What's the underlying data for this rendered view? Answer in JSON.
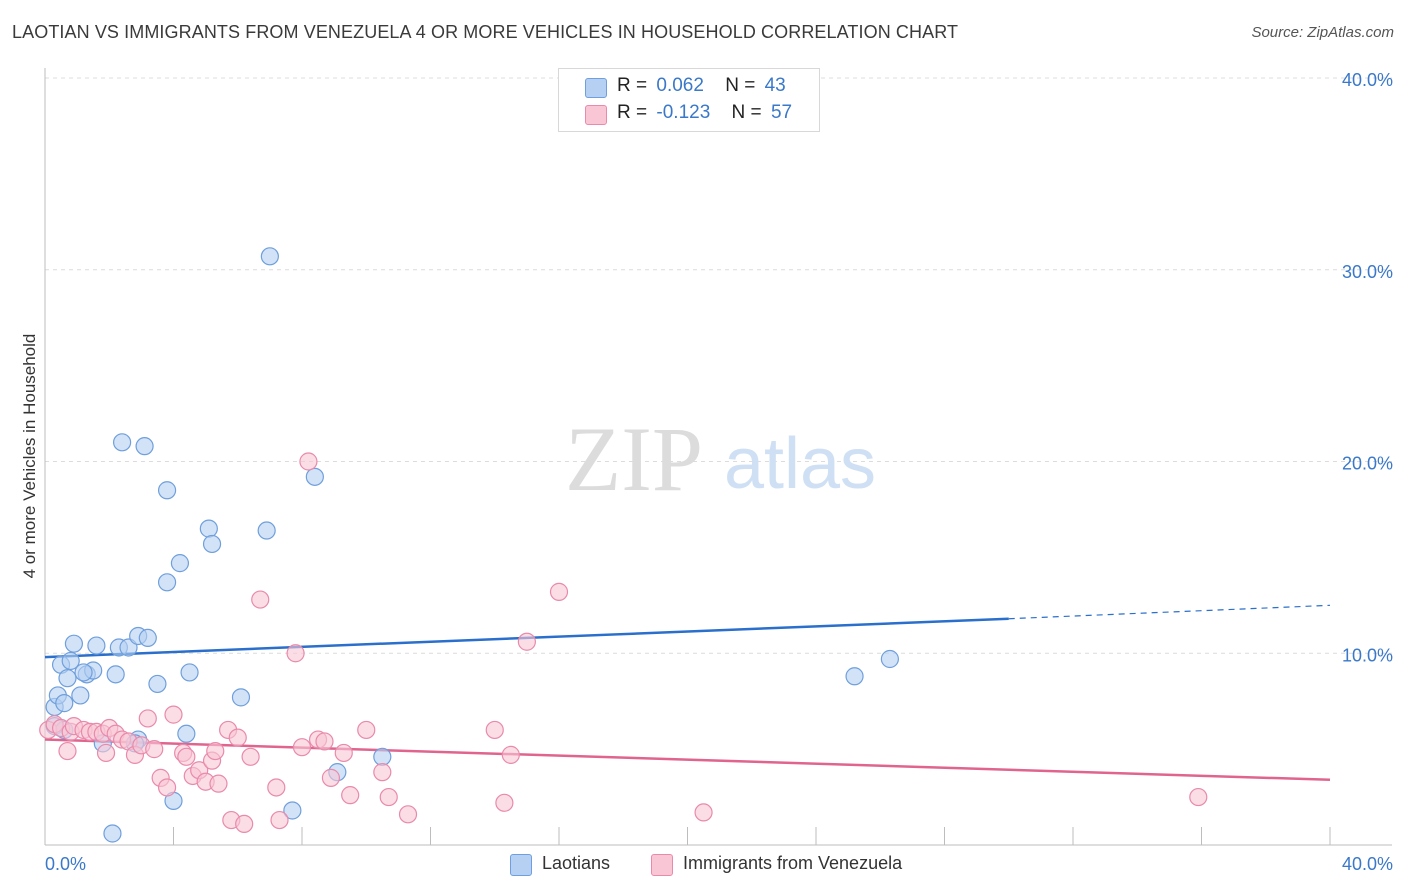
{
  "title": "LAOTIAN VS IMMIGRANTS FROM VENEZUELA 4 OR MORE VEHICLES IN HOUSEHOLD CORRELATION CHART",
  "source": "Source: ZipAtlas.com",
  "watermark": {
    "zip": "ZIP",
    "atlas": "atlas"
  },
  "stats_legend": [
    {
      "r_label": "R =",
      "r_value": "0.062",
      "n_label": "N =",
      "n_value": "43",
      "color": "#a9c8f0"
    },
    {
      "r_label": "R =",
      "r_value": "-0.123",
      "n_label": "N =",
      "n_value": "57",
      "color": "#f7b8cc"
    }
  ],
  "series_legend": [
    {
      "label": "Laotians",
      "color": "#a9c8f0"
    },
    {
      "label": "Immigrants from Venezuela",
      "color": "#f7b8cc"
    }
  ],
  "colors": {
    "blue_line": "#2a6fcc",
    "pink_line": "#e0648e",
    "blue_fill": "#b5d0f2",
    "blue_stroke": "#6f9fdc",
    "pink_fill": "#f9c6d6",
    "pink_stroke": "#e98aab",
    "axis_text": "#3a78c9",
    "grid": "#dcdcdc"
  },
  "chart_data": {
    "type": "scatter",
    "title": "LAOTIAN VS IMMIGRANTS FROM VENEZUELA 4 OR MORE VEHICLES IN HOUSEHOLD CORRELATION CHART",
    "xlabel": "",
    "ylabel": "4 or more Vehicles in Household",
    "xlim": [
      0,
      40
    ],
    "ylim": [
      0,
      40
    ],
    "x_tick_labels": [
      "0.0%",
      "40.0%"
    ],
    "y_ticks": [
      10,
      20,
      30,
      40
    ],
    "y_tick_labels": [
      "10.0%",
      "20.0%",
      "30.0%",
      "40.0%"
    ],
    "series": [
      {
        "name": "Laotians",
        "r": 0.062,
        "n": 43,
        "trend": {
          "x0": 0,
          "y0": 9.8,
          "x1": 30,
          "y1": 11.8,
          "dash_to_x": 40,
          "dash_y": 12.5
        },
        "points": [
          [
            0.3,
            6.2
          ],
          [
            0.3,
            7.2
          ],
          [
            0.4,
            7.8
          ],
          [
            0.5,
            9.4
          ],
          [
            0.6,
            7.4
          ],
          [
            0.7,
            8.7
          ],
          [
            0.8,
            9.6
          ],
          [
            0.9,
            10.5
          ],
          [
            1.1,
            7.8
          ],
          [
            1.3,
            8.9
          ],
          [
            1.5,
            9.1
          ],
          [
            1.6,
            10.4
          ],
          [
            1.8,
            5.3
          ],
          [
            2.2,
            8.9
          ],
          [
            2.3,
            10.3
          ],
          [
            2.4,
            21.0
          ],
          [
            2.6,
            10.3
          ],
          [
            2.9,
            10.9
          ],
          [
            2.9,
            5.5
          ],
          [
            3.1,
            20.8
          ],
          [
            3.2,
            10.8
          ],
          [
            3.5,
            8.4
          ],
          [
            3.8,
            18.5
          ],
          [
            3.8,
            13.7
          ],
          [
            4.0,
            2.3
          ],
          [
            4.2,
            14.7
          ],
          [
            4.5,
            9.0
          ],
          [
            5.1,
            16.5
          ],
          [
            5.2,
            15.7
          ],
          [
            6.1,
            7.7
          ],
          [
            6.9,
            16.4
          ],
          [
            7.0,
            30.7
          ],
          [
            7.7,
            1.8
          ],
          [
            8.4,
            19.2
          ],
          [
            9.1,
            3.8
          ],
          [
            10.5,
            4.6
          ],
          [
            25.2,
            8.8
          ],
          [
            26.3,
            9.7
          ],
          [
            2.1,
            0.6
          ],
          [
            4.4,
            5.8
          ],
          [
            2.8,
            5.3
          ],
          [
            1.2,
            9.0
          ],
          [
            0.6,
            6.0
          ]
        ]
      },
      {
        "name": "Immigrants from Venezuela",
        "r": -0.123,
        "n": 57,
        "trend": {
          "x0": 0,
          "y0": 5.5,
          "x1": 40,
          "y1": 3.4
        },
        "points": [
          [
            0.1,
            6.0
          ],
          [
            0.3,
            6.3
          ],
          [
            0.5,
            6.1
          ],
          [
            0.7,
            4.9
          ],
          [
            0.8,
            5.9
          ],
          [
            0.9,
            6.2
          ],
          [
            1.2,
            6.0
          ],
          [
            1.4,
            5.9
          ],
          [
            1.6,
            5.9
          ],
          [
            1.8,
            5.8
          ],
          [
            1.9,
            4.8
          ],
          [
            2.0,
            6.1
          ],
          [
            2.2,
            5.8
          ],
          [
            2.4,
            5.5
          ],
          [
            2.6,
            5.4
          ],
          [
            2.8,
            4.7
          ],
          [
            3.0,
            5.2
          ],
          [
            3.2,
            6.6
          ],
          [
            3.4,
            5.0
          ],
          [
            3.6,
            3.5
          ],
          [
            3.8,
            3.0
          ],
          [
            4.0,
            6.8
          ],
          [
            4.3,
            4.8
          ],
          [
            4.4,
            4.6
          ],
          [
            4.6,
            3.6
          ],
          [
            4.8,
            3.9
          ],
          [
            5.0,
            3.3
          ],
          [
            5.2,
            4.4
          ],
          [
            5.3,
            4.9
          ],
          [
            5.4,
            3.2
          ],
          [
            5.7,
            6.0
          ],
          [
            5.8,
            1.3
          ],
          [
            6.0,
            5.6
          ],
          [
            6.2,
            1.1
          ],
          [
            6.4,
            4.6
          ],
          [
            6.7,
            12.8
          ],
          [
            7.2,
            3.0
          ],
          [
            7.3,
            1.3
          ],
          [
            7.8,
            10.0
          ],
          [
            8.0,
            5.1
          ],
          [
            8.2,
            20.0
          ],
          [
            8.5,
            5.5
          ],
          [
            8.7,
            5.4
          ],
          [
            8.9,
            3.5
          ],
          [
            9.3,
            4.8
          ],
          [
            9.5,
            2.6
          ],
          [
            10.0,
            6.0
          ],
          [
            10.5,
            3.8
          ],
          [
            10.7,
            2.5
          ],
          [
            11.3,
            1.6
          ],
          [
            14.0,
            6.0
          ],
          [
            14.3,
            2.2
          ],
          [
            14.5,
            4.7
          ],
          [
            15.0,
            10.6
          ],
          [
            16.0,
            13.2
          ],
          [
            20.5,
            1.7
          ],
          [
            35.9,
            2.5
          ]
        ]
      }
    ]
  }
}
